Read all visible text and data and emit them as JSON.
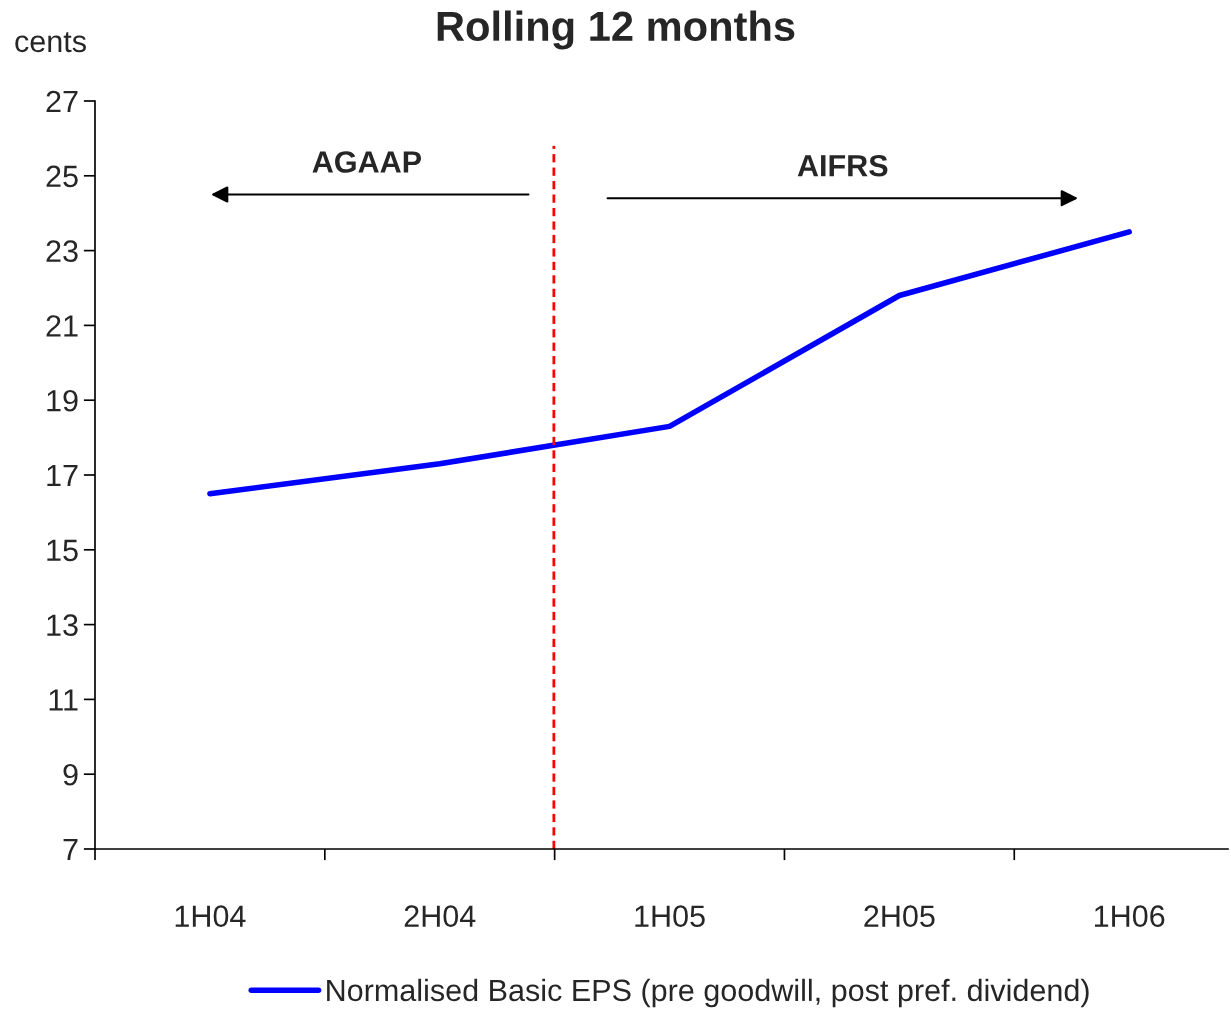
{
  "chart_data": {
    "type": "line",
    "title": "Rolling 12 months",
    "ylabel": "cents",
    "categories": [
      "1H04",
      "2H04",
      "1H05",
      "2H05",
      "1H06"
    ],
    "series": [
      {
        "name": "Normalised Basic EPS (pre goodwill, post pref. dividend)",
        "color": "#0000ff",
        "values": [
          16.5,
          17.3,
          18.3,
          21.8,
          23.5
        ]
      }
    ],
    "ylim": [
      7,
      27
    ],
    "yticks": [
      7,
      9,
      11,
      13,
      15,
      17,
      19,
      21,
      23,
      25,
      27
    ],
    "annotations": [
      "AGAAP",
      "AIFRS"
    ],
    "grid": false,
    "legend": "bottom",
    "marker": "none",
    "line_style": "solid"
  }
}
